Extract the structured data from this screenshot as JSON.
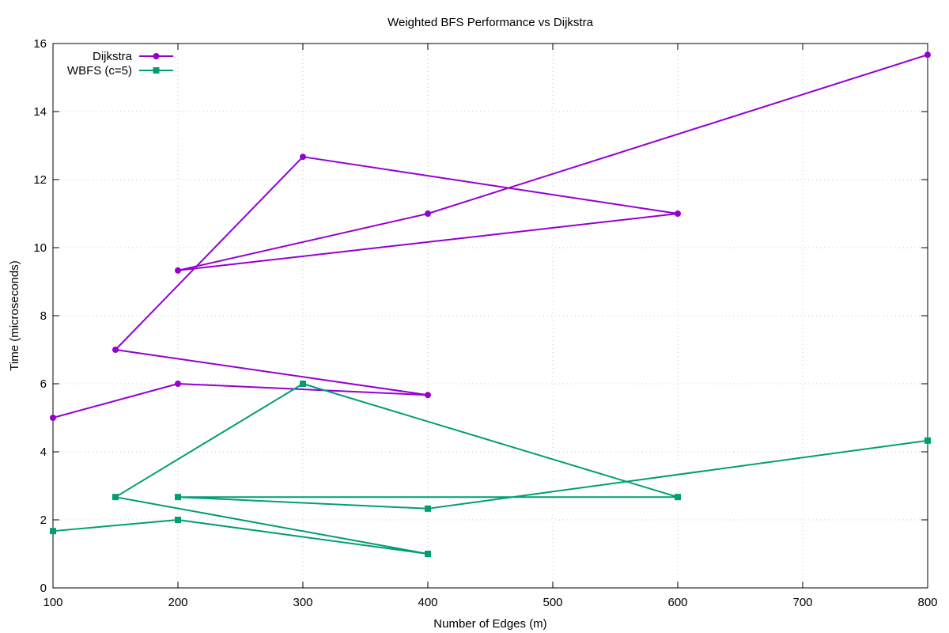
{
  "chart_data": {
    "type": "line",
    "title": "Weighted BFS Performance vs Dijkstra",
    "xlabel": "Number of Edges (m)",
    "ylabel": "Time (microseconds)",
    "xlim": [
      100,
      800
    ],
    "ylim": [
      0,
      16
    ],
    "xticks": [
      100,
      200,
      300,
      400,
      500,
      600,
      700,
      800
    ],
    "yticks": [
      0,
      2,
      4,
      6,
      8,
      10,
      12,
      14,
      16
    ],
    "grid": true,
    "legend_position": "top-left",
    "series": [
      {
        "name": "Dijkstra",
        "color": "#9400d3",
        "marker": "circle",
        "points": [
          [
            100,
            5.0
          ],
          [
            200,
            6.0
          ],
          [
            400,
            5.67
          ],
          [
            150,
            7.0
          ],
          [
            300,
            12.67
          ],
          [
            600,
            11.0
          ],
          [
            200,
            9.33
          ],
          [
            400,
            11.0
          ],
          [
            800,
            15.67
          ]
        ]
      },
      {
        "name": "WBFS (c=5)",
        "color": "#009e73",
        "marker": "square",
        "points": [
          [
            100,
            1.67
          ],
          [
            200,
            2.0
          ],
          [
            400,
            1.0
          ],
          [
            150,
            2.67
          ],
          [
            300,
            6.0
          ],
          [
            600,
            2.67
          ],
          [
            200,
            2.67
          ],
          [
            400,
            2.33
          ],
          [
            800,
            4.33
          ]
        ]
      }
    ]
  }
}
